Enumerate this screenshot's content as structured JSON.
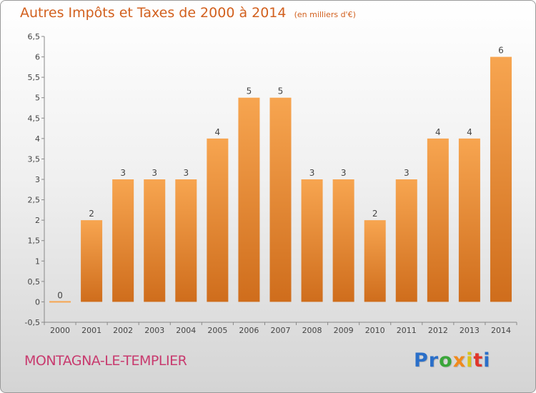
{
  "chart_data": {
    "type": "bar",
    "title": "Autres Impôts et Taxes de 2000 à 2014",
    "subtitle": "(en milliers d'€)",
    "xlabel": "",
    "ylabel": "",
    "categories": [
      "2000",
      "2001",
      "2002",
      "2003",
      "2004",
      "2005",
      "2006",
      "2007",
      "2008",
      "2009",
      "2010",
      "2011",
      "2012",
      "2013",
      "2014"
    ],
    "values": [
      0,
      2,
      3,
      3,
      3,
      4,
      5,
      5,
      3,
      3,
      2,
      3,
      4,
      4,
      6
    ],
    "data_labels": [
      "0",
      "2",
      "3",
      "3",
      "3",
      "4",
      "5",
      "5",
      "3",
      "3",
      "2",
      "3",
      "4",
      "4",
      "6"
    ],
    "ylim": [
      -0.5,
      6.5
    ],
    "yticks": [
      -0.5,
      0,
      0.5,
      1,
      1.5,
      2,
      2.5,
      3,
      3.5,
      4,
      4.5,
      5,
      5.5,
      6,
      6.5
    ],
    "ytick_labels": [
      "-0,5",
      "0",
      "0,5",
      "1",
      "1,5",
      "2",
      "2,5",
      "3",
      "3,5",
      "4",
      "4,5",
      "5",
      "5,5",
      "6",
      "6,5"
    ],
    "grid": false,
    "bar_color_light": "#f7a550",
    "bar_color_dark": "#cf6d1c"
  },
  "footer": {
    "commune": "MONTAGNA-LE-TEMPLIER",
    "brand_letters": [
      {
        "ch": "P",
        "color": "#2a6fc9"
      },
      {
        "ch": "r",
        "color": "#2a6fc9"
      },
      {
        "ch": "o",
        "color": "#3aa63a"
      },
      {
        "ch": "x",
        "color": "#f08a1c"
      },
      {
        "ch": "i",
        "color": "#d9c31a"
      },
      {
        "ch": "t",
        "color": "#e0362c"
      },
      {
        "ch": "i",
        "color": "#2a6fc9"
      }
    ]
  },
  "colors": {
    "title": "#d2601e",
    "commune": "#c83a6e"
  }
}
